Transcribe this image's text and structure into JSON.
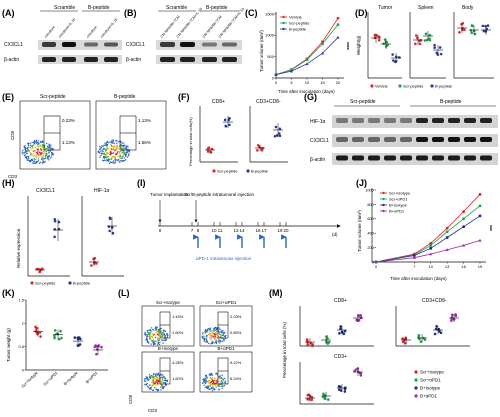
{
  "panel_labels": [
    "(A)",
    "(B)",
    "(C)",
    "(D)",
    "(E)",
    "(F)",
    "(G)",
    "(H)",
    "(I)",
    "(J)",
    "(K)",
    "(L)",
    "(M)"
  ],
  "blots": {
    "A": {
      "group_headers": [
        "Scramble",
        "B-peptide"
      ],
      "lanes": [
        "coculture",
        "coculture+IL-15",
        "coculture",
        "coculture+IL-15"
      ],
      "rows": [
        "CX3CL1",
        "β-actin"
      ]
    },
    "B": {
      "group_headers": [
        "Scramble",
        "B-peptide"
      ],
      "lanes": [
        "CM NK92MI-TCM",
        "CM NK92MI-TCM+IL-15",
        "CM NK92MI-TCM",
        "CM NK92MI-TCM+IL-15"
      ],
      "rows": [
        "CX3CL1",
        "β-actin"
      ]
    },
    "G": {
      "group_headers": [
        "Scr-peptide",
        "B-peptide"
      ],
      "rows": [
        "HIF-1α",
        "CX3CL1",
        "β-actin"
      ]
    }
  },
  "panel_d": {
    "titles": [
      "Tumor",
      "Spleen",
      "Body"
    ],
    "ylabel": "Weight(g)",
    "legend": [
      "Vehicle",
      "Scr-peptide",
      "B-peptide"
    ]
  },
  "panel_e": {
    "groups": [
      "Scr-peptide",
      "B-peptide"
    ],
    "xlabel": "CD3",
    "ylabel": "CD8",
    "left_pcts": [
      "0.23%",
      "1.13%"
    ],
    "right_pcts": [
      "1.13%",
      "1.56%"
    ]
  },
  "panel_f": {
    "ylabel": "Percentage in total cells(%)",
    "titles": [
      "CD8+",
      "CD3+CD8-"
    ],
    "legend": [
      "Scr-peptide",
      "B-peptide"
    ]
  },
  "panel_h": {
    "ylabel": "Relative expression",
    "titles": [
      "CX3CL1",
      "HIF-1α"
    ],
    "legend": [
      "Scr-peptide",
      "B-peptide"
    ]
  },
  "panel_i": {
    "implant": "Tumor implantation",
    "injection": "Scr/B-peptide intratumoral injection",
    "ticks": [
      "0",
      "7",
      "8",
      "10",
      "11",
      "13",
      "14",
      "16",
      "17",
      "19",
      "20"
    ],
    "unit": "(d)",
    "apd1": "αPD-1 intravenous injection"
  },
  "panel_l": {
    "panels": [
      "Scr+Isotype",
      "Scr+αPD1",
      "B+Isotype",
      "B+αPD1"
    ],
    "pcts": [
      [
        "1.43%",
        "1.60%"
      ],
      [
        "2.03%",
        "0.85%"
      ],
      [
        "4.28%",
        "1.60%"
      ],
      [
        "9.22%",
        "6.24%"
      ]
    ],
    "xlabel": "CD3",
    "ylabel": "CD8"
  },
  "panel_m": {
    "ylabel": "Percentage in total cells (%)",
    "titles": [
      "CD8+",
      "CD3+CD8-",
      "CD3+"
    ],
    "legend": [
      "Scr+Isotype",
      "Scr+αPD1",
      "B+Isotype",
      "B+αPD1"
    ]
  },
  "colors": {
    "vehicle": "#e8262a",
    "scr": "#1aa34a",
    "bpep": "#2b3aa8",
    "bapd1": "#8b2a9e",
    "scr_iso": "#d8262a",
    "scr_apd1": "#1aa34a",
    "b_iso": "#1f2e8f",
    "b_apd1": "#9b2fae"
  },
  "chart_data": [
    {
      "type": "line",
      "title": "(C)",
      "xlabel": "Time after inoculation (days)",
      "ylabel": "Tumor volume (mm³)",
      "x": [
        0,
        5,
        10,
        15,
        20
      ],
      "ylim": [
        0,
        1500
      ],
      "yticks": [
        0,
        500,
        1000,
        1500
      ],
      "series": [
        {
          "name": "Vehicle",
          "values": [
            80,
            200,
            450,
            850,
            1400
          ]
        },
        {
          "name": "Scr-peptide",
          "values": [
            80,
            190,
            430,
            800,
            1250
          ]
        },
        {
          "name": "B-peptide",
          "values": [
            80,
            160,
            330,
            580,
            950
          ]
        }
      ],
      "annotation": "****"
    },
    {
      "type": "line",
      "title": "(J)",
      "xlabel": "Time after inoculation (days)",
      "ylabel": "Tumor volume (mm³)",
      "x": [
        0,
        7,
        10,
        13,
        16,
        19
      ],
      "ylim": [
        0,
        1000
      ],
      "yticks": [
        0,
        200,
        400,
        600,
        800,
        1000
      ],
      "series": [
        {
          "name": "Scr+Isotype",
          "values": [
            0,
            110,
            260,
            470,
            700,
            940
          ]
        },
        {
          "name": "Scr+αPD1",
          "values": [
            0,
            100,
            230,
            420,
            600,
            780
          ]
        },
        {
          "name": "B+Isotype",
          "values": [
            0,
            90,
            190,
            340,
            490,
            640
          ]
        },
        {
          "name": "B+αPD1",
          "values": [
            0,
            60,
            110,
            170,
            230,
            300
          ]
        }
      ],
      "annotation": "***"
    },
    {
      "type": "scatter",
      "title": "(K)",
      "ylabel": "Tumor weight (g)",
      "categories": [
        "Scr+Isotype",
        "Scr+αPD1",
        "B+Isotype",
        "B+αPD1"
      ],
      "ylim": [
        0,
        1.5
      ],
      "yticks": [
        0,
        0.5,
        1.0,
        1.5
      ],
      "means": [
        0.82,
        0.76,
        0.62,
        0.43
      ]
    }
  ]
}
